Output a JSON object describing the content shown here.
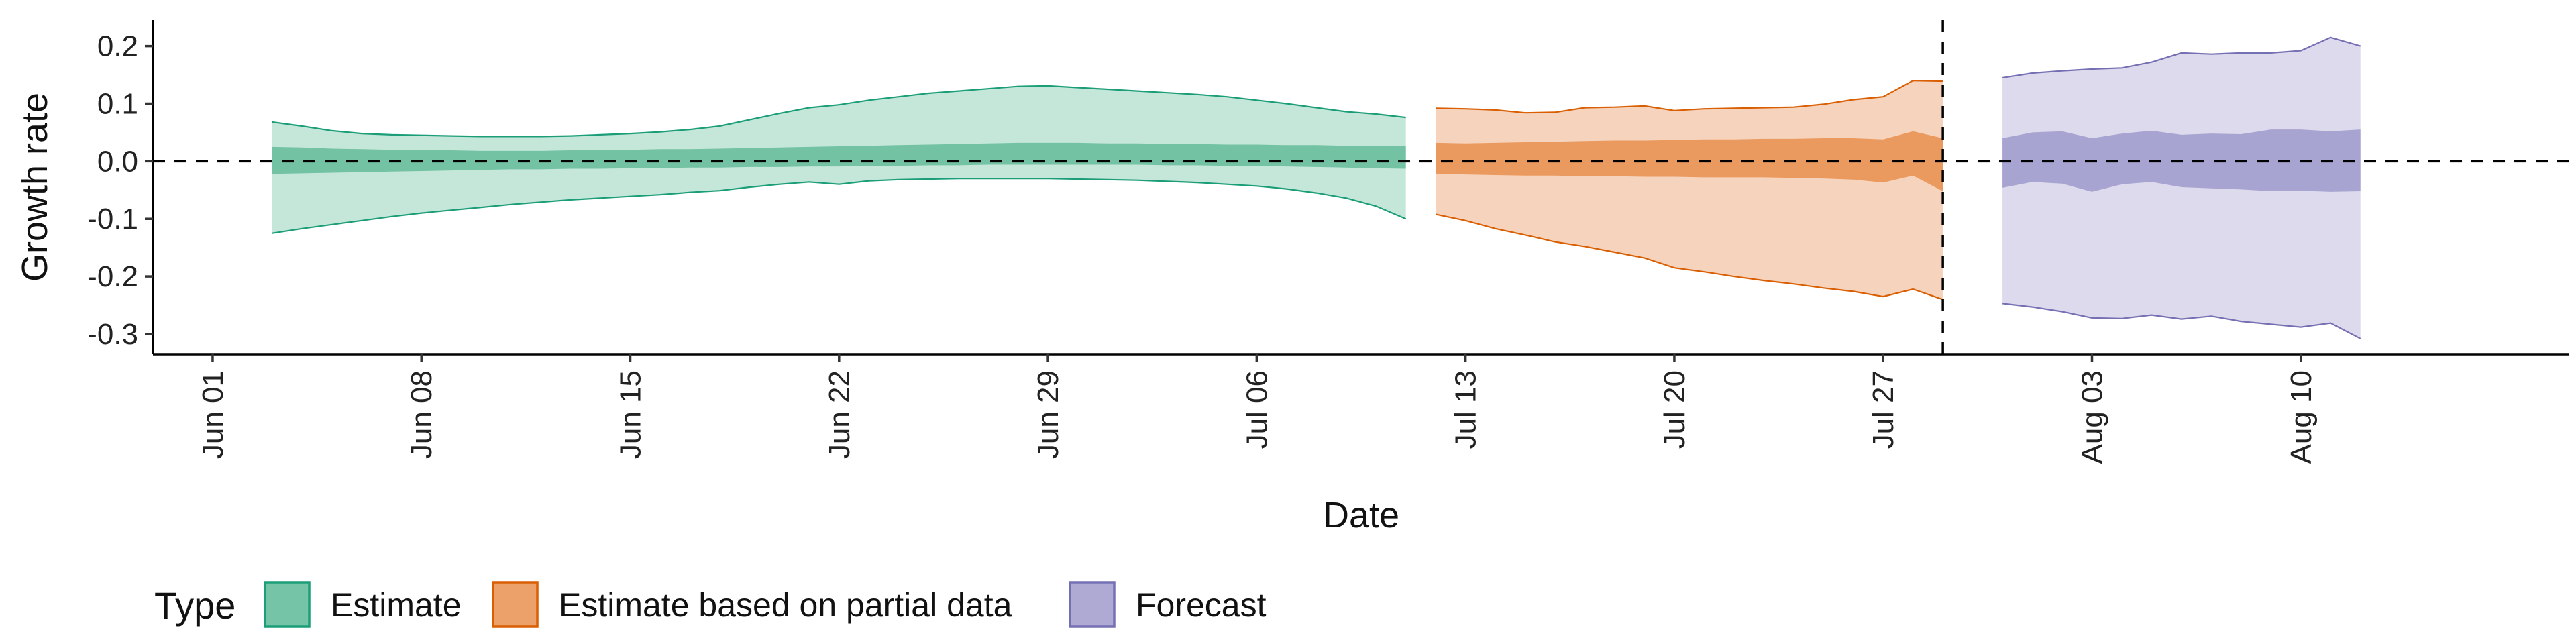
{
  "chart_data": {
    "type": "area",
    "title": "",
    "xlabel": "Date",
    "ylabel": "Growth rate",
    "x_range": [
      "2020-05-30",
      "2020-08-19"
    ],
    "ylim": [
      -0.335,
      0.245
    ],
    "x_ticks": [
      {
        "date": "2020-06-01",
        "label": "Jun 01"
      },
      {
        "date": "2020-06-08",
        "label": "Jun 08"
      },
      {
        "date": "2020-06-15",
        "label": "Jun 15"
      },
      {
        "date": "2020-06-22",
        "label": "Jun 22"
      },
      {
        "date": "2020-06-29",
        "label": "Jun 29"
      },
      {
        "date": "2020-07-06",
        "label": "Jul 06"
      },
      {
        "date": "2020-07-13",
        "label": "Jul 13"
      },
      {
        "date": "2020-07-20",
        "label": "Jul 20"
      },
      {
        "date": "2020-07-27",
        "label": "Jul 27"
      },
      {
        "date": "2020-08-03",
        "label": "Aug 03"
      },
      {
        "date": "2020-08-10",
        "label": "Aug 10"
      }
    ],
    "y_ticks": [
      {
        "value": 0.2,
        "label": "0.2"
      },
      {
        "value": 0.1,
        "label": "0.1"
      },
      {
        "value": 0.0,
        "label": "0.0"
      },
      {
        "value": -0.1,
        "label": "-0.1"
      },
      {
        "value": -0.2,
        "label": "-0.2"
      },
      {
        "value": -0.3,
        "label": "-0.3"
      }
    ],
    "reference_lines": [
      {
        "axis": "y",
        "value": 0,
        "style": "dashed"
      },
      {
        "axis": "x",
        "value": "2020-07-29",
        "style": "dashed"
      }
    ],
    "grid": false,
    "legend": {
      "title": "Type",
      "position": "bottom-left",
      "entries": [
        {
          "label": "Estimate",
          "fill": "#76c4a8",
          "stroke": "#1b9e77"
        },
        {
          "label": "Estimate based on partial data",
          "fill": "#eca06a",
          "stroke": "#d95f02"
        },
        {
          "label": "Forecast",
          "fill": "#aeaad4",
          "stroke": "#7570b3"
        }
      ]
    },
    "series": [
      {
        "name": "Estimate",
        "outer_fill": "#c5e7da",
        "inner_fill": "#72c2a3",
        "stroke": "#1b9e77",
        "x": [
          "2020-06-03",
          "2020-06-04",
          "2020-06-05",
          "2020-06-06",
          "2020-06-07",
          "2020-06-08",
          "2020-06-09",
          "2020-06-10",
          "2020-06-11",
          "2020-06-12",
          "2020-06-13",
          "2020-06-14",
          "2020-06-15",
          "2020-06-16",
          "2020-06-17",
          "2020-06-18",
          "2020-06-19",
          "2020-06-20",
          "2020-06-21",
          "2020-06-22",
          "2020-06-23",
          "2020-06-24",
          "2020-06-25",
          "2020-06-26",
          "2020-06-27",
          "2020-06-28",
          "2020-06-29",
          "2020-06-30",
          "2020-07-01",
          "2020-07-02",
          "2020-07-03",
          "2020-07-04",
          "2020-07-05",
          "2020-07-06",
          "2020-07-07",
          "2020-07-08",
          "2020-07-09",
          "2020-07-10",
          "2020-07-11"
        ],
        "upper_outer": [
          0.068,
          0.061,
          0.053,
          0.048,
          0.046,
          0.045,
          0.044,
          0.043,
          0.043,
          0.043,
          0.044,
          0.046,
          0.048,
          0.051,
          0.055,
          0.061,
          0.072,
          0.083,
          0.093,
          0.098,
          0.106,
          0.112,
          0.118,
          0.122,
          0.126,
          0.13,
          0.131,
          0.128,
          0.125,
          0.122,
          0.119,
          0.116,
          0.112,
          0.106,
          0.1,
          0.093,
          0.086,
          0.082,
          0.076
        ],
        "lower_outer": [
          -0.125,
          -0.117,
          -0.11,
          -0.103,
          -0.096,
          -0.09,
          -0.085,
          -0.08,
          -0.075,
          -0.071,
          -0.067,
          -0.064,
          -0.061,
          -0.058,
          -0.054,
          -0.051,
          -0.045,
          -0.04,
          -0.036,
          -0.04,
          -0.034,
          -0.032,
          -0.031,
          -0.03,
          -0.03,
          -0.03,
          -0.03,
          -0.031,
          -0.032,
          -0.033,
          -0.035,
          -0.037,
          -0.04,
          -0.043,
          -0.048,
          -0.055,
          -0.064,
          -0.078,
          -0.1
        ],
        "upper_inner": [
          0.025,
          0.024,
          0.022,
          0.021,
          0.02,
          0.019,
          0.019,
          0.018,
          0.018,
          0.018,
          0.019,
          0.019,
          0.02,
          0.021,
          0.021,
          0.022,
          0.023,
          0.024,
          0.025,
          0.026,
          0.027,
          0.028,
          0.029,
          0.03,
          0.031,
          0.032,
          0.032,
          0.032,
          0.031,
          0.031,
          0.03,
          0.03,
          0.029,
          0.029,
          0.028,
          0.028,
          0.027,
          0.027,
          0.026
        ],
        "lower_inner": [
          -0.022,
          -0.021,
          -0.02,
          -0.019,
          -0.018,
          -0.017,
          -0.016,
          -0.015,
          -0.014,
          -0.014,
          -0.013,
          -0.013,
          -0.012,
          -0.012,
          -0.011,
          -0.011,
          -0.01,
          -0.01,
          -0.009,
          -0.009,
          -0.008,
          -0.008,
          -0.007,
          -0.007,
          -0.006,
          -0.006,
          -0.006,
          -0.006,
          -0.006,
          -0.006,
          -0.007,
          -0.007,
          -0.008,
          -0.008,
          -0.009,
          -0.01,
          -0.011,
          -0.012,
          -0.013
        ]
      },
      {
        "name": "Estimate based on partial data",
        "outer_fill": "#f6d3bc",
        "inner_fill": "#eb9a5f",
        "stroke": "#d95f02",
        "x": [
          "2020-07-12",
          "2020-07-13",
          "2020-07-14",
          "2020-07-15",
          "2020-07-16",
          "2020-07-17",
          "2020-07-18",
          "2020-07-19",
          "2020-07-20",
          "2020-07-21",
          "2020-07-22",
          "2020-07-23",
          "2020-07-24",
          "2020-07-25",
          "2020-07-26",
          "2020-07-27",
          "2020-07-28",
          "2020-07-29"
        ],
        "upper_outer": [
          0.092,
          0.091,
          0.089,
          0.084,
          0.085,
          0.093,
          0.094,
          0.096,
          0.088,
          0.091,
          0.092,
          0.093,
          0.094,
          0.099,
          0.107,
          0.112,
          0.14,
          0.139
        ],
        "lower_outer": [
          -0.092,
          -0.103,
          -0.117,
          -0.128,
          -0.14,
          -0.148,
          -0.158,
          -0.168,
          -0.185,
          -0.192,
          -0.2,
          -0.207,
          -0.213,
          -0.22,
          -0.226,
          -0.235,
          -0.222,
          -0.24
        ],
        "upper_inner": [
          0.032,
          0.031,
          0.032,
          0.033,
          0.034,
          0.035,
          0.036,
          0.036,
          0.037,
          0.038,
          0.038,
          0.039,
          0.039,
          0.04,
          0.04,
          0.038,
          0.052,
          0.04
        ],
        "lower_inner": [
          -0.022,
          -0.023,
          -0.024,
          -0.025,
          -0.025,
          -0.026,
          -0.026,
          -0.027,
          -0.027,
          -0.028,
          -0.028,
          -0.028,
          -0.029,
          -0.03,
          -0.032,
          -0.037,
          -0.025,
          -0.052
        ]
      },
      {
        "name": "Forecast",
        "outer_fill": "#dcdaec",
        "inner_fill": "#a8a4d1",
        "stroke": "#7570b3",
        "x": [
          "2020-07-31",
          "2020-08-01",
          "2020-08-02",
          "2020-08-03",
          "2020-08-04",
          "2020-08-05",
          "2020-08-06",
          "2020-08-07",
          "2020-08-08",
          "2020-08-09",
          "2020-08-10",
          "2020-08-11",
          "2020-08-12"
        ],
        "upper_outer": [
          0.145,
          0.153,
          0.157,
          0.16,
          0.162,
          0.172,
          0.188,
          0.186,
          0.188,
          0.188,
          0.192,
          0.215,
          0.2
        ],
        "lower_outer": [
          -0.247,
          -0.253,
          -0.261,
          -0.272,
          -0.273,
          -0.267,
          -0.274,
          -0.269,
          -0.278,
          -0.283,
          -0.288,
          -0.281,
          -0.308
        ],
        "upper_inner": [
          0.04,
          0.05,
          0.052,
          0.04,
          0.048,
          0.053,
          0.046,
          0.048,
          0.047,
          0.055,
          0.055,
          0.052,
          0.055
        ],
        "lower_inner": [
          -0.046,
          -0.036,
          -0.039,
          -0.053,
          -0.04,
          -0.036,
          -0.045,
          -0.047,
          -0.049,
          -0.052,
          -0.051,
          -0.053,
          -0.052
        ]
      }
    ]
  }
}
